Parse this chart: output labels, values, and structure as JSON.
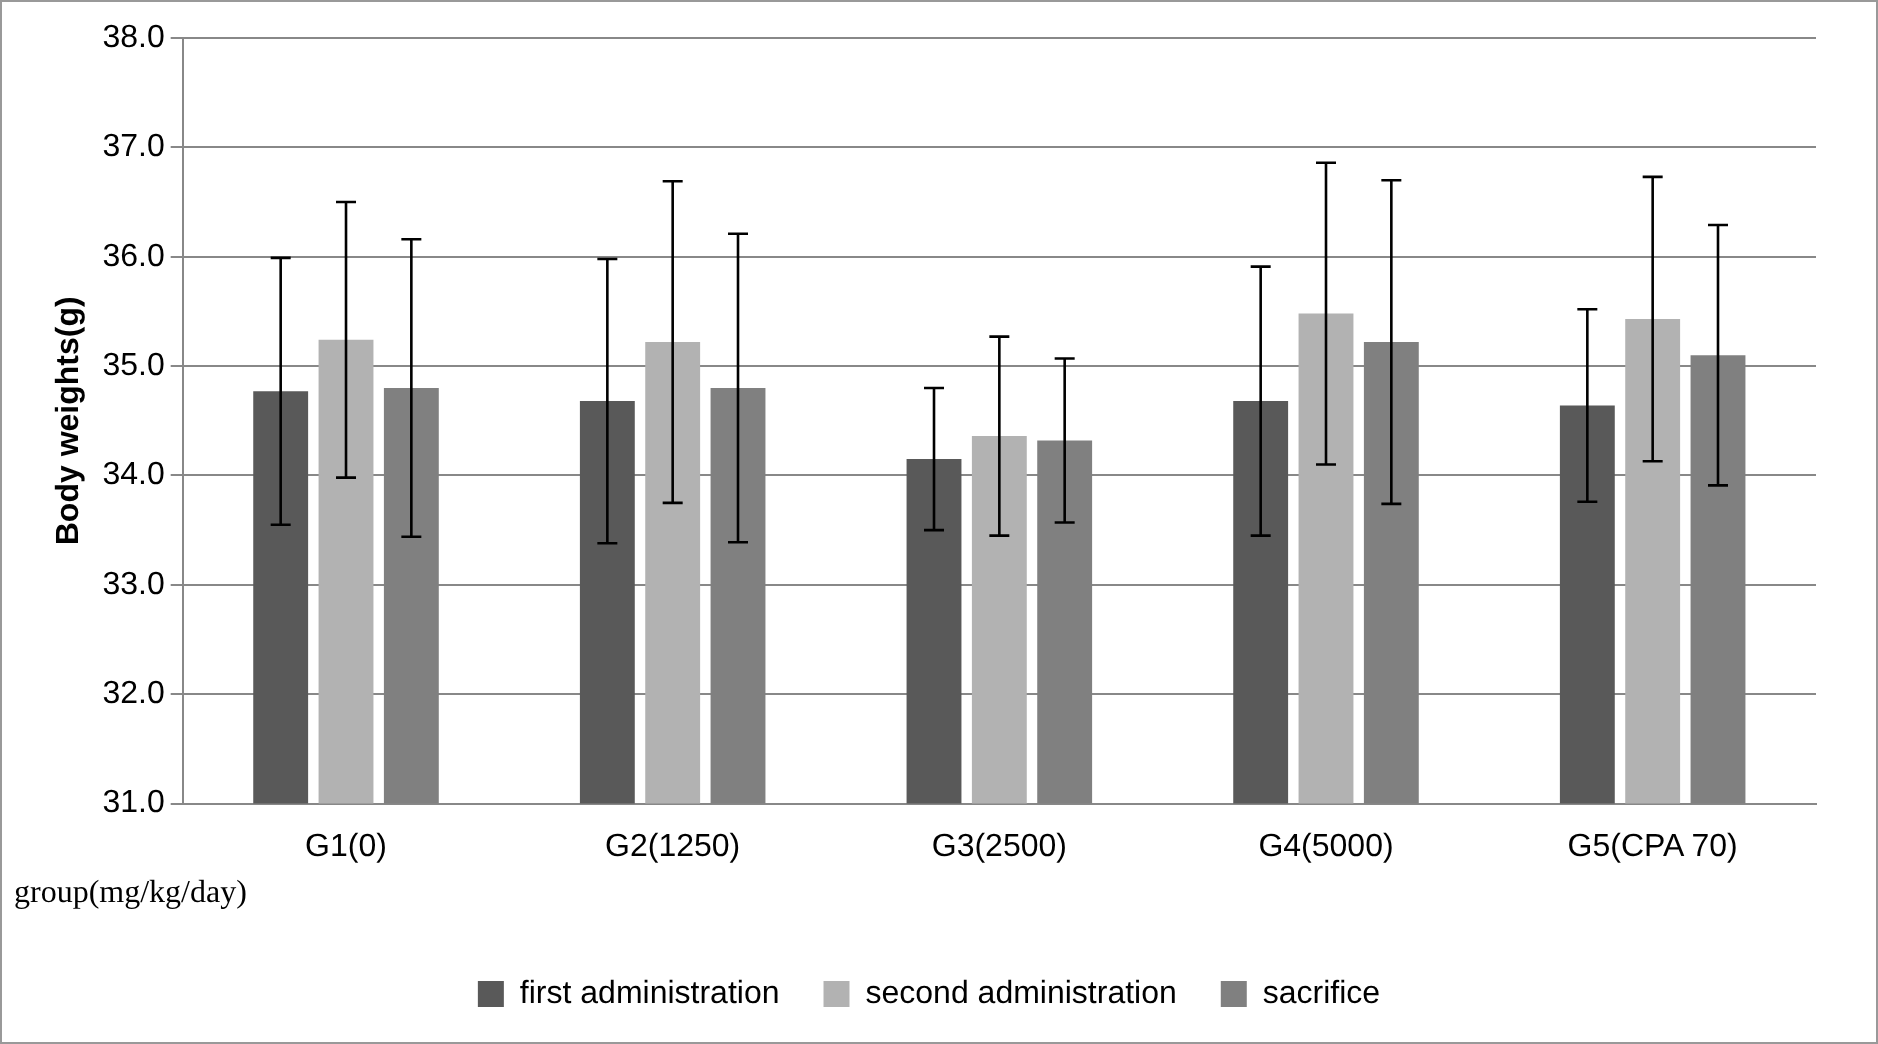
{
  "chart_data": {
    "type": "bar",
    "ylabel": "Body weights(g)",
    "xlabel": "group(mg/kg/day)",
    "categories": [
      "G1(0)",
      "G2(1250)",
      "G3(2500)",
      "G4(5000)",
      "G5(CPA 70)"
    ],
    "series": [
      {
        "name": "first administration",
        "color": "#595959",
        "values": [
          34.77,
          34.68,
          34.15,
          34.68,
          34.64
        ],
        "errors": [
          1.22,
          1.3,
          0.65,
          1.23,
          0.88
        ]
      },
      {
        "name": "second administration",
        "color": "#b2b2b2",
        "values": [
          35.24,
          35.22,
          34.36,
          35.48,
          35.43
        ],
        "errors": [
          1.26,
          1.47,
          0.91,
          1.38,
          1.3
        ]
      },
      {
        "name": "sacrifice",
        "color": "#808080",
        "values": [
          34.8,
          34.8,
          34.32,
          35.22,
          35.1
        ],
        "errors": [
          1.36,
          1.41,
          0.75,
          1.48,
          1.19
        ]
      }
    ],
    "ylim": [
      31,
      38
    ],
    "yticks": [
      {
        "value": 31,
        "label": "31.0"
      },
      {
        "value": 32,
        "label": "32.0"
      },
      {
        "value": 33,
        "label": "33.0"
      },
      {
        "value": 34,
        "label": "34.0"
      },
      {
        "value": 35,
        "label": "35.0"
      },
      {
        "value": 36,
        "label": "36.0"
      },
      {
        "value": 37,
        "label": "37.0"
      },
      {
        "value": 38,
        "label": "38.0"
      }
    ],
    "grid": "y",
    "legend": "bottom"
  }
}
